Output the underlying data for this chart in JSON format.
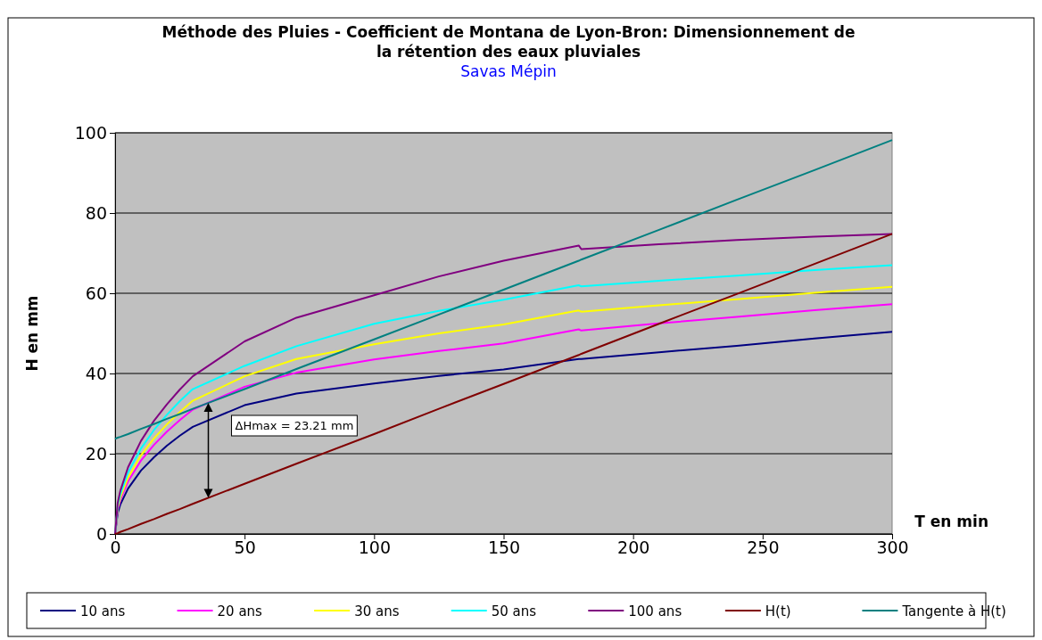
{
  "chart_data": {
    "type": "line",
    "title": "Méthode des Pluies - Coefficient de Montana de Lyon-Bron: Dimensionnement de la rétention des eaux pluviales",
    "subtitle": "Savas Mépin",
    "xlabel": "T en min",
    "ylabel": "H en mm",
    "x": [
      0,
      1,
      2,
      5,
      10,
      15,
      20,
      25,
      30,
      50,
      70,
      100,
      125,
      150,
      179,
      180,
      210,
      240,
      270,
      300
    ],
    "xlim": [
      0,
      300
    ],
    "xticks": [
      0,
      50,
      100,
      150,
      200,
      250,
      300
    ],
    "ylim": [
      0,
      100
    ],
    "yticks": [
      0,
      20,
      40,
      60,
      80,
      100
    ],
    "grid": "y",
    "legend": "bottom",
    "marker": "none",
    "line_style": "solid",
    "series": [
      {
        "name": "10 ans",
        "color": "#000080",
        "values": [
          0,
          5.2,
          7.3,
          11.3,
          15.8,
          19.1,
          22.0,
          24.5,
          26.7,
          32.1,
          35.0,
          37.5,
          39.4,
          41.0,
          43.6,
          43.6,
          45.3,
          46.9,
          48.7,
          50.4
        ]
      },
      {
        "name": "20 ans",
        "color": "#ff00ff",
        "values": [
          0,
          6.0,
          8.4,
          13.1,
          18.3,
          22.2,
          25.5,
          28.4,
          31.0,
          36.7,
          40.2,
          43.5,
          45.6,
          47.5,
          51.0,
          50.7,
          52.5,
          54.1,
          55.8,
          57.3
        ]
      },
      {
        "name": "30 ans",
        "color": "#ffff00",
        "values": [
          0,
          6.5,
          9.0,
          14.0,
          19.6,
          23.8,
          27.3,
          30.4,
          33.2,
          39.3,
          43.6,
          47.3,
          50.0,
          52.2,
          55.7,
          55.4,
          57.0,
          58.5,
          60.1,
          61.6
        ]
      },
      {
        "name": "50 ans",
        "color": "#00ffff",
        "values": [
          0,
          7.0,
          9.8,
          15.3,
          21.3,
          25.9,
          29.7,
          33.1,
          36.1,
          41.9,
          46.8,
          52.4,
          55.6,
          58.4,
          62.0,
          61.7,
          63.1,
          64.4,
          65.8,
          67.0
        ]
      },
      {
        "name": "100 ans",
        "color": "#800080",
        "values": [
          0,
          7.7,
          10.7,
          16.6,
          23.2,
          28.2,
          32.3,
          36.0,
          39.3,
          48.0,
          53.9,
          59.5,
          64.2,
          68.1,
          71.9,
          71.0,
          72.2,
          73.3,
          74.1,
          74.8
        ]
      },
      {
        "name": "H(t)",
        "color": "#800000",
        "values": [
          0,
          0.2,
          0.5,
          1.2,
          2.5,
          3.7,
          5.0,
          6.2,
          7.5,
          12.5,
          17.5,
          24.9,
          31.2,
          37.4,
          44.6,
          44.9,
          52.4,
          59.8,
          67.3,
          74.8
        ]
      },
      {
        "name": "Tangente à H(t)",
        "color": "#008080",
        "values": [
          23.7,
          24.0,
          24.2,
          24.9,
          26.2,
          27.4,
          28.7,
          29.9,
          31.2,
          36.1,
          41.1,
          48.5,
          54.7,
          60.9,
          68.1,
          68.4,
          75.8,
          83.3,
          90.7,
          98.2
        ]
      }
    ],
    "annotations": [
      "ΔHmax = 23.21 mm"
    ]
  }
}
